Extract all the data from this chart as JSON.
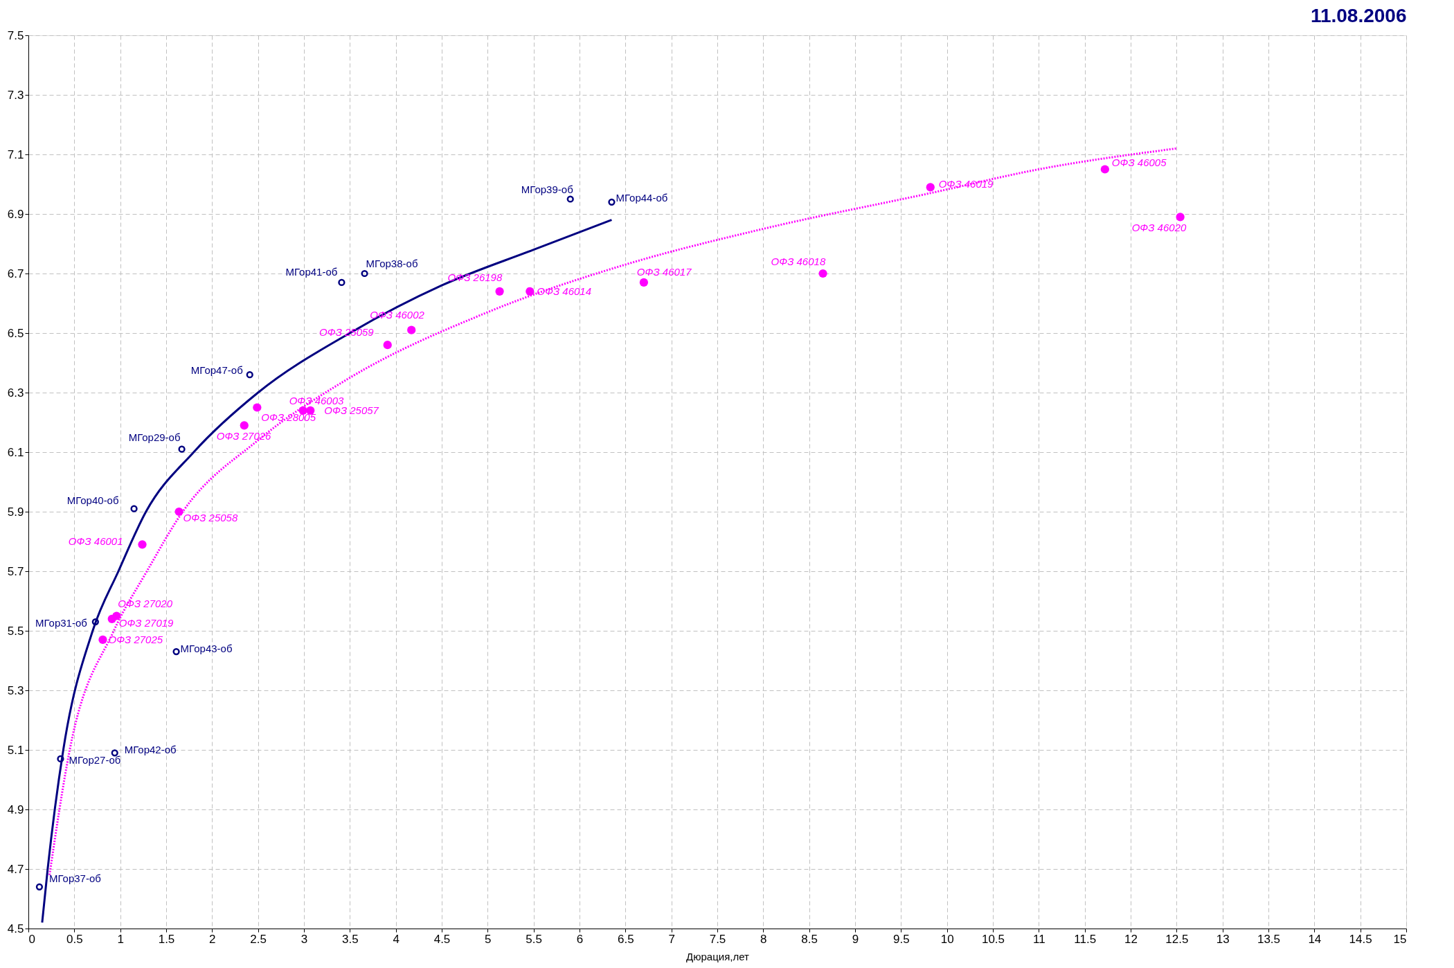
{
  "chart_data": {
    "type": "scatter",
    "title": "11.08.2006",
    "xlabel": "Дюрация,лет",
    "xlim": [
      0,
      15
    ],
    "xticks": [
      0,
      0.5,
      1,
      1.5,
      2,
      2.5,
      3,
      3.5,
      4,
      4.5,
      5,
      5.5,
      6,
      6.5,
      7,
      7.5,
      8,
      8.5,
      9,
      9.5,
      10,
      10.5,
      11,
      11.5,
      12,
      12.5,
      13,
      13.5,
      14,
      14.5,
      15
    ],
    "ylim": [
      4.5,
      7.5
    ],
    "yticks": [
      4.5,
      4.7,
      4.9,
      5.1,
      5.3,
      5.5,
      5.7,
      5.9,
      6.1,
      6.3,
      6.5,
      6.7,
      6.9,
      7.1,
      7.3,
      7.5
    ],
    "grid": true,
    "series": [
      {
        "type": "scatter",
        "color": "#000080",
        "marker": "circle",
        "x": [
          0.12,
          0.35,
          0.94,
          0.73,
          1.61,
          1.15,
          1.67,
          2.41,
          3.41,
          3.66,
          5.9,
          6.35
        ],
        "values": [
          4.64,
          5.07,
          5.09,
          5.53,
          5.43,
          5.91,
          6.11,
          6.36,
          6.67,
          6.7,
          6.95,
          6.94
        ]
      },
      {
        "type": "scatter",
        "color": "#ff00ff",
        "marker": "circle",
        "x": [
          1.24,
          1.64,
          0.96,
          0.91,
          0.81,
          2.35,
          2.49,
          2.99,
          3.07,
          3.91,
          4.17,
          5.13,
          5.46,
          6.7,
          8.65,
          9.82,
          11.72,
          12.54
        ],
        "values": [
          5.79,
          5.9,
          5.55,
          5.54,
          5.47,
          6.19,
          6.25,
          6.24,
          6.24,
          6.46,
          6.51,
          6.64,
          6.64,
          6.67,
          6.7,
          6.99,
          7.05,
          6.89
        ]
      },
      {
        "type": "line",
        "color": "#000080",
        "line_style": "solid",
        "marker": "none",
        "x": [
          0.15,
          0.21,
          0.38,
          0.7,
          0.98,
          1.28,
          1.8,
          2.5,
          3.5,
          4.5,
          5.5,
          6.35
        ],
        "values": [
          4.52,
          4.7,
          5.1,
          5.5,
          5.7,
          5.9,
          6.1,
          6.3,
          6.5,
          6.66,
          6.78,
          6.88
        ]
      },
      {
        "type": "line",
        "color": "#ff00ff",
        "line_style": "dotted",
        "marker": "none",
        "x": [
          0.23,
          0.45,
          0.93,
          1.29,
          1.68,
          2.5,
          3.5,
          5,
          6.5,
          8,
          9.82,
          11,
          12.5
        ],
        "values": [
          4.68,
          5.1,
          5.5,
          5.7,
          5.9,
          6.14,
          6.35,
          6.57,
          6.73,
          6.85,
          6.97,
          7.05,
          7.12
        ]
      }
    ],
    "annotations": [
      {
        "text": "МГор37-об",
        "x": 0.12,
        "y": 4.64
      },
      {
        "text": "МГор27-об",
        "x": 0.35,
        "y": 5.07
      },
      {
        "text": "МГор42-об",
        "x": 0.94,
        "y": 5.09
      },
      {
        "text": "МГор31-об",
        "x": 0.73,
        "y": 5.53
      },
      {
        "text": "МГор43-об",
        "x": 1.61,
        "y": 5.43
      },
      {
        "text": "МГор40-об",
        "x": 1.15,
        "y": 5.91
      },
      {
        "text": "МГор29-об",
        "x": 1.67,
        "y": 6.11
      },
      {
        "text": "МГор47-об",
        "x": 2.41,
        "y": 6.36
      },
      {
        "text": "МГор41-об",
        "x": 3.41,
        "y": 6.67
      },
      {
        "text": "МГор38-об",
        "x": 3.66,
        "y": 6.7
      },
      {
        "text": "МГор39-об",
        "x": 5.9,
        "y": 6.95
      },
      {
        "text": "МГор44-об",
        "x": 6.35,
        "y": 6.94
      },
      {
        "text": "ОФЗ 46001",
        "x": 1.24,
        "y": 5.79
      },
      {
        "text": "ОФЗ 25058",
        "x": 1.64,
        "y": 5.9
      },
      {
        "text": "ОФЗ 27020",
        "x": 0.96,
        "y": 5.55
      },
      {
        "text": "ОФЗ 27019",
        "x": 0.91,
        "y": 5.54
      },
      {
        "text": "ОФЗ 27025",
        "x": 0.81,
        "y": 5.47
      },
      {
        "text": "ОФЗ 27026",
        "x": 2.35,
        "y": 6.19
      },
      {
        "text": "ОФЗ 28005",
        "x": 2.49,
        "y": 6.25
      },
      {
        "text": "ОФЗ 46003",
        "x": 2.99,
        "y": 6.24
      },
      {
        "text": "ОФЗ 25057",
        "x": 3.07,
        "y": 6.24
      },
      {
        "text": "ОФЗ 25059",
        "x": 3.91,
        "y": 6.46
      },
      {
        "text": "ОФЗ 46002",
        "x": 4.17,
        "y": 6.51
      },
      {
        "text": "ОФЗ 26198",
        "x": 5.13,
        "y": 6.64
      },
      {
        "text": "ОФЗ 46014",
        "x": 5.46,
        "y": 6.64
      },
      {
        "text": "ОФЗ 46017",
        "x": 6.7,
        "y": 6.67
      },
      {
        "text": "ОФЗ 46018",
        "x": 8.65,
        "y": 6.7
      },
      {
        "text": "ОФЗ 46019",
        "x": 9.82,
        "y": 6.99
      },
      {
        "text": "ОФЗ 46005",
        "x": 11.72,
        "y": 7.05
      },
      {
        "text": "ОФЗ 46020",
        "x": 12.54,
        "y": 6.89
      }
    ]
  }
}
